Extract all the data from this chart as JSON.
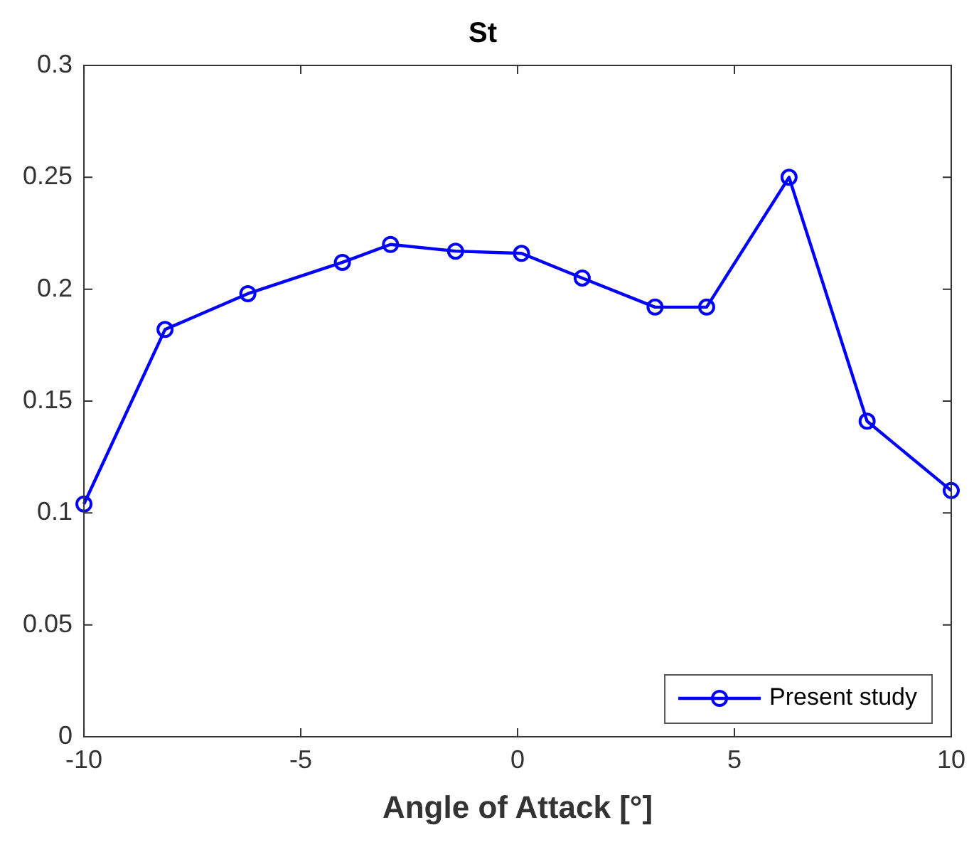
{
  "chart_data": {
    "type": "line",
    "title": "St",
    "xlabel": "Angle of Attack [°]",
    "series": [
      {
        "name": "Present study",
        "color": "#0000ff",
        "x": [
          -10,
          -8.13,
          -6.22,
          -4.04,
          -2.93,
          -1.43,
          0.09,
          1.49,
          3.17,
          4.36,
          6.26,
          8.06,
          10
        ],
        "values": [
          0.104,
          0.182,
          0.198,
          0.212,
          0.22,
          0.217,
          0.216,
          0.205,
          0.192,
          0.192,
          0.25,
          0.141,
          0.11
        ]
      }
    ],
    "xlim": [
      -10,
      10
    ],
    "xticks": [
      -10,
      -5,
      0,
      5,
      10
    ],
    "ylim": [
      0,
      0.3
    ],
    "yticks": [
      0,
      0.05,
      0.1,
      0.15,
      0.2,
      0.25,
      0.3
    ],
    "grid": false,
    "legend": "bottom right",
    "marker": "circle",
    "line_style": "solid"
  }
}
